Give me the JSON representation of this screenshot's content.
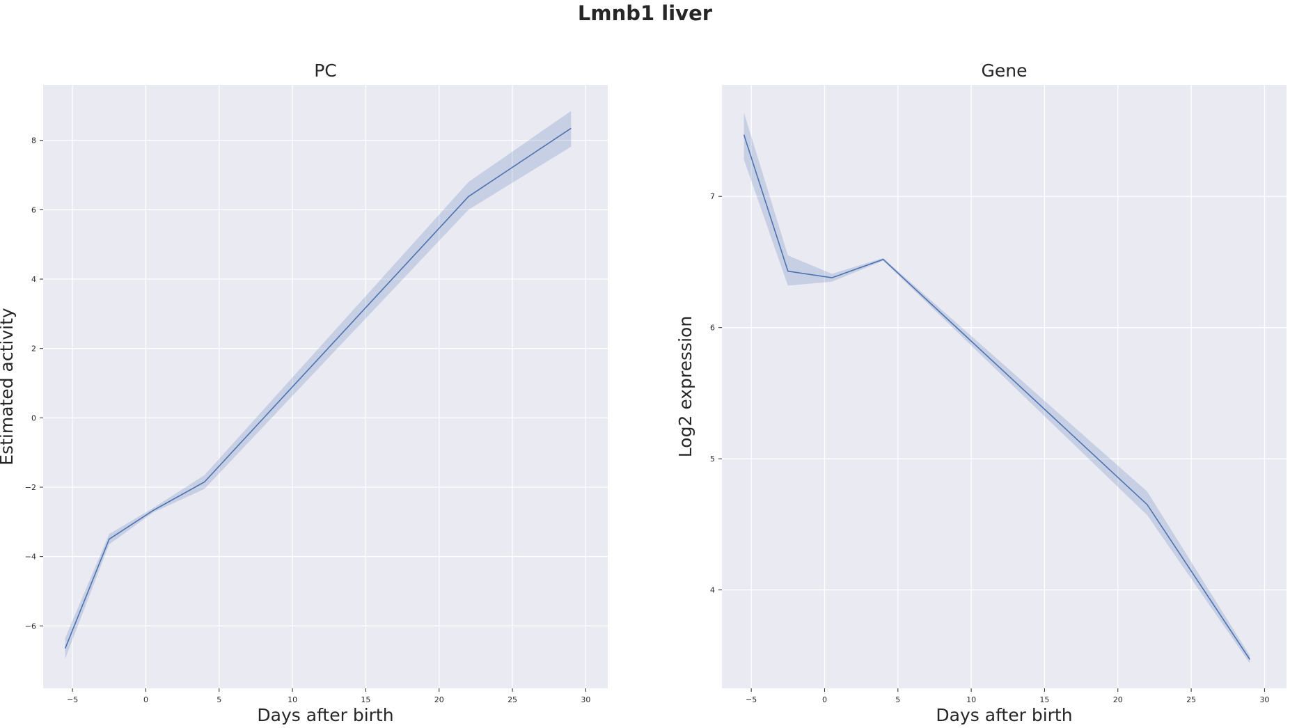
{
  "figure": {
    "title": "Lmnb1 liver"
  },
  "chart_data": [
    {
      "type": "line",
      "title": "PC",
      "xlabel": "Days after birth",
      "ylabel": "Estimated activity",
      "xlim": [
        -7,
        31.5
      ],
      "ylim": [
        -7.8,
        9.6
      ],
      "xticks": [
        -5,
        0,
        5,
        10,
        15,
        20,
        25,
        30
      ],
      "yticks": [
        -6,
        -4,
        -2,
        0,
        2,
        4,
        6,
        8
      ],
      "x": [
        -5.5,
        -2.5,
        0.5,
        4,
        22,
        29
      ],
      "series": [
        {
          "values": [
            -6.65,
            -3.5,
            -2.67,
            -1.85,
            6.38,
            8.35
          ],
          "lower": [
            -6.95,
            -3.65,
            -2.73,
            -2.05,
            6.0,
            7.82
          ],
          "upper": [
            -6.35,
            -3.35,
            -2.6,
            -1.65,
            6.8,
            8.85
          ],
          "color": "#4c72b0"
        }
      ],
      "grid": true,
      "background": "#eaeaf2"
    },
    {
      "type": "line",
      "title": "Gene",
      "xlabel": "Days after birth",
      "ylabel": "Log2 expression",
      "xlim": [
        -7,
        31.5
      ],
      "ylim": [
        3.25,
        7.85
      ],
      "xticks": [
        -5,
        0,
        5,
        10,
        15,
        20,
        25,
        30
      ],
      "yticks": [
        4,
        5,
        6,
        7
      ],
      "x": [
        -5.5,
        -2.5,
        0.5,
        4,
        22,
        29
      ],
      "series": [
        {
          "values": [
            7.47,
            6.43,
            6.38,
            6.52,
            4.65,
            3.47
          ],
          "lower": [
            7.28,
            6.32,
            6.35,
            6.51,
            4.57,
            3.44
          ],
          "upper": [
            7.64,
            6.55,
            6.41,
            6.53,
            4.75,
            3.5
          ],
          "color": "#4c72b0"
        }
      ],
      "grid": true,
      "background": "#eaeaf2"
    }
  ]
}
